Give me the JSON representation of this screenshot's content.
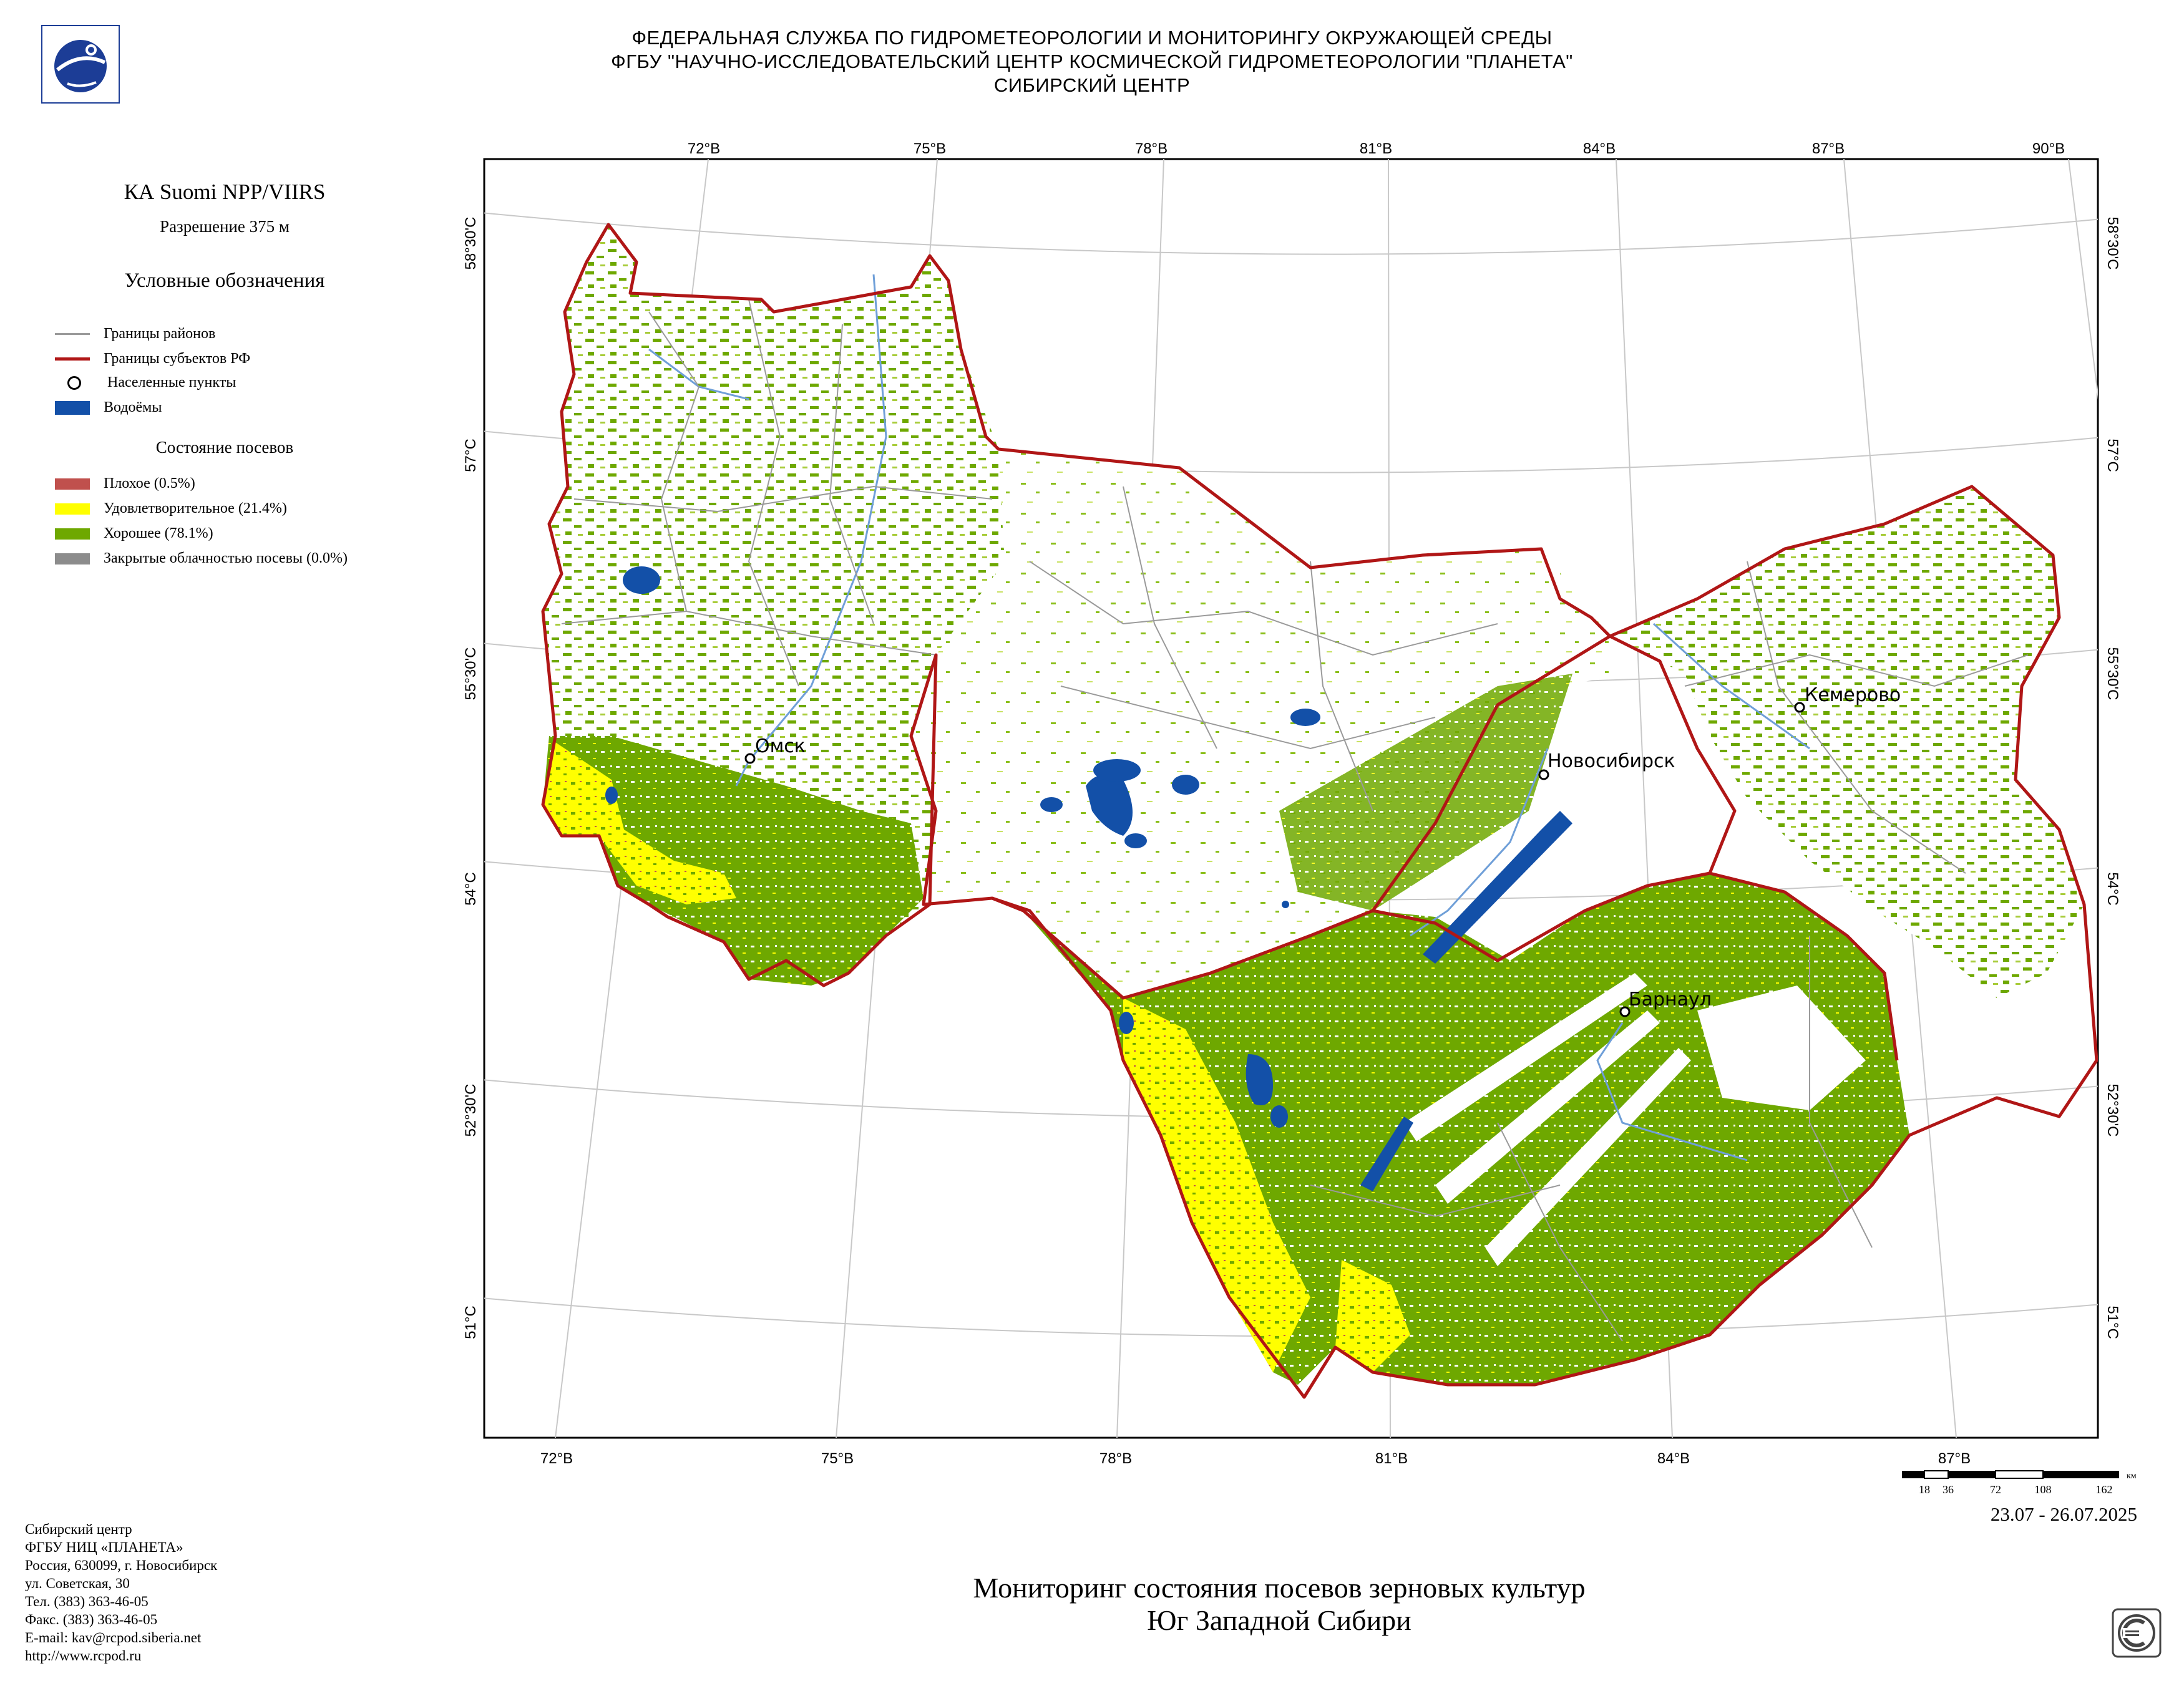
{
  "header": {
    "line1": "ФЕДЕРАЛЬНАЯ СЛУЖБА ПО ГИДРОМЕТЕОРОЛОГИИ И МОНИТОРИНГУ ОКРУЖАЮЩЕЙ СРЕДЫ",
    "line2": "ФГБУ \"НАУЧНО-ИССЛЕДОВАТЕЛЬСКИЙ ЦЕНТР КОСМИЧЕСКОЙ ГИДРОМЕТЕОРОЛОГИИ \"ПЛАНЕТА\"",
    "line3": "СИБИРСКИЙ ЦЕНТР",
    "logo_icon": "planeta-logo-icon"
  },
  "sidebar": {
    "satellite": "КА Suomi NPP/VIIRS",
    "resolution": "Разрешение 375 м",
    "legend_title": "Условные обозначения",
    "legend": [
      {
        "label": "Границы районов",
        "symbol": "line",
        "color": "#9a9a9a"
      },
      {
        "label": "Границы субъектов РФ",
        "symbol": "line",
        "color": "#b01616"
      },
      {
        "label": "Населенные пункты",
        "symbol": "circle",
        "color": "#000000"
      },
      {
        "label": "Водоёмы",
        "symbol": "box",
        "color": "#1350a8"
      }
    ],
    "crop_title": "Состояние посевов",
    "crop_legend": [
      {
        "label": "Плохое (0.5%)",
        "color": "#c0504d"
      },
      {
        "label": "Удовлетворительное (21.4%)",
        "color": "#ffff00"
      },
      {
        "label": "Хорошее (78.1%)",
        "color": "#6ea800"
      },
      {
        "label": "Закрытые облачностью посевы (0.0%)",
        "color": "#8c8c8c"
      }
    ]
  },
  "map": {
    "top_lon_labels": [
      "72°В",
      "75°В",
      "78°В",
      "81°В",
      "84°В",
      "87°В",
      "90°В"
    ],
    "bottom_lon_labels": [
      "72°В",
      "75°В",
      "78°В",
      "81°В",
      "84°В",
      "87°В"
    ],
    "left_lat_labels": [
      "58°30'С",
      "57°С",
      "55°30'С",
      "54°С",
      "52°30'С",
      "51°С"
    ],
    "right_lat_labels": [
      "58°30'С",
      "57°С",
      "55°30'С",
      "54°С",
      "52°30'С",
      "51°С"
    ],
    "cities": [
      "Омск",
      "Новосибирск",
      "Кемерово",
      "Барнаул"
    ],
    "scale_labels": [
      "18",
      "36",
      "72",
      "108",
      "162"
    ],
    "scale_unit": "км"
  },
  "footer": {
    "address": [
      "Сибирский центр",
      "ФГБУ НИЦ «ПЛАНЕТА»",
      "Россия, 630099, г. Новосибирск",
      "ул. Советская, 30",
      "Тел. (383) 363-46-05",
      "Факс. (383) 363-46-05",
      "E-mail: kav@rcpod.siberia.net",
      "http://www.rcpod.ru"
    ],
    "date_range": "23.07 - 26.07.2025",
    "title_line1": "Мониторинг состояния посевов зерновых культур",
    "title_line2": "Юг Западной Сибири",
    "iso_badge_icon": "iso-certification-icon"
  }
}
